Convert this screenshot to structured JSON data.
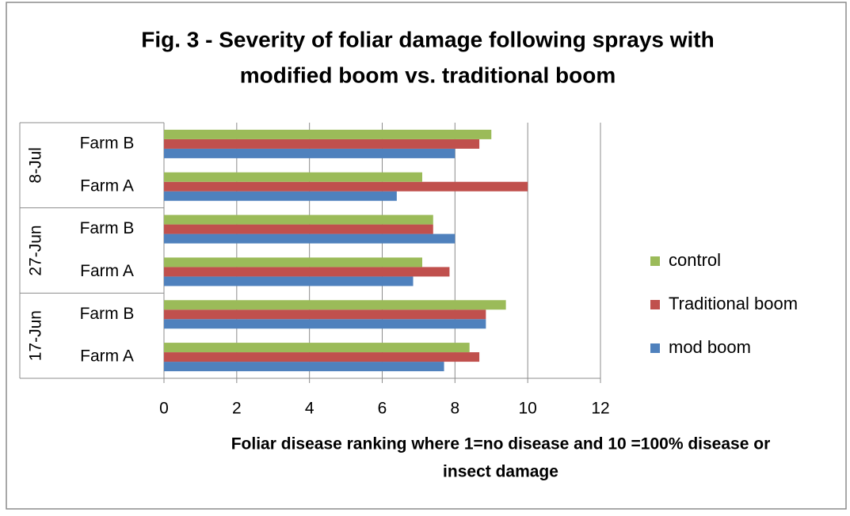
{
  "chart_data": {
    "type": "hbar",
    "title": [
      "Fig. 3 - Severity of foliar damage following sprays with",
      "modified boom vs. traditional boom"
    ],
    "x_label": [
      "Foliar disease ranking where 1=no disease and 10 =100% disease or",
      "insect damage"
    ],
    "groups": [
      {
        "name": "17-Jun",
        "categories": [
          "Farm A",
          "Farm B"
        ]
      },
      {
        "name": "27-Jun",
        "categories": [
          "Farm A",
          "Farm B"
        ]
      },
      {
        "name": "8-Jul",
        "categories": [
          "Farm A",
          "Farm B"
        ]
      }
    ],
    "series": [
      {
        "name": "mod boom",
        "color": "#4f81bd",
        "values": [
          7.7,
          8.85,
          6.85,
          8.0,
          6.4,
          8.0
        ]
      },
      {
        "name": "Traditional boom",
        "color": "#c0504d",
        "values": [
          8.67,
          8.85,
          7.85,
          7.4,
          10.0,
          8.67
        ]
      },
      {
        "name": "control",
        "color": "#9bbb59",
        "values": [
          8.4,
          9.4,
          7.1,
          7.4,
          7.1,
          9.0
        ]
      }
    ],
    "xlim": [
      0,
      12
    ],
    "xticks": [
      0,
      2,
      4,
      6,
      8,
      10,
      12
    ],
    "grid": true,
    "legend": "right"
  }
}
